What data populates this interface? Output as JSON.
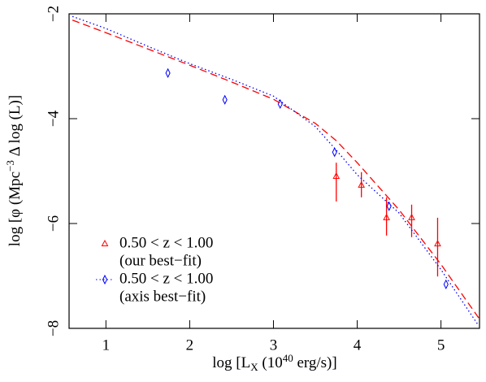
{
  "chart_data": {
    "type": "line",
    "xlabel_parts": [
      "log [L",
      "X",
      " (10",
      "40",
      " erg/s)]"
    ],
    "ylabel_parts": [
      "log [φ (Mpc",
      "−3",
      " Δ log (L)]"
    ],
    "xlim": [
      0.56,
      5.46
    ],
    "ylim": [
      -8,
      -2
    ],
    "xticks": [
      1,
      2,
      3,
      4,
      5
    ],
    "yticks": [
      {
        "value": -2,
        "label": "−2"
      },
      {
        "value": -4,
        "label": "−4"
      },
      {
        "value": -6,
        "label": "−6"
      },
      {
        "value": -8,
        "label": "−8"
      }
    ],
    "series": [
      {
        "name": "0.50 < z <  1.00",
        "legend_detail": "(our best−fit)",
        "color": "#ff0000",
        "marker": "triangle",
        "x": [
          3.75,
          4.05,
          4.35,
          4.65,
          4.96
        ],
        "values": [
          -5.1,
          -5.27,
          -5.89,
          -5.89,
          -6.39
        ],
        "err_minus": [
          0.48,
          0.23,
          0.34,
          0.37,
          0.62
        ],
        "err_plus": [
          0.26,
          0.25,
          0.39,
          0.25,
          0.5
        ]
      },
      {
        "name": "0.50 < z <  1.00",
        "legend_detail": "(axis best−fit)",
        "color": "#0000ff",
        "marker": "diamond",
        "x": [
          1.74,
          2.42,
          3.08,
          3.73,
          4.38,
          5.06
        ],
        "values": [
          -3.13,
          -3.64,
          -3.72,
          -4.64,
          -5.67,
          -7.16
        ]
      },
      {
        "color": "#ff0000",
        "style": "dashed",
        "x": [
          0.6,
          1,
          1.5,
          2,
          2.5,
          3,
          3.5,
          3.75,
          4,
          4.5,
          5,
          5.45
        ],
        "values": [
          -2.12,
          -2.36,
          -2.67,
          -2.98,
          -3.3,
          -3.63,
          -4.09,
          -4.42,
          -4.84,
          -5.74,
          -6.78,
          -7.8
        ]
      },
      {
        "color": "#0000ff",
        "style": "dotted",
        "x": [
          0.6,
          1,
          1.5,
          2,
          2.5,
          3,
          3.5,
          3.75,
          4,
          4.5,
          5,
          5.45
        ],
        "values": [
          -2.05,
          -2.28,
          -2.62,
          -2.95,
          -3.25,
          -3.57,
          -4.15,
          -4.6,
          -5.07,
          -5.8,
          -6.88,
          -7.95
        ]
      }
    ]
  }
}
